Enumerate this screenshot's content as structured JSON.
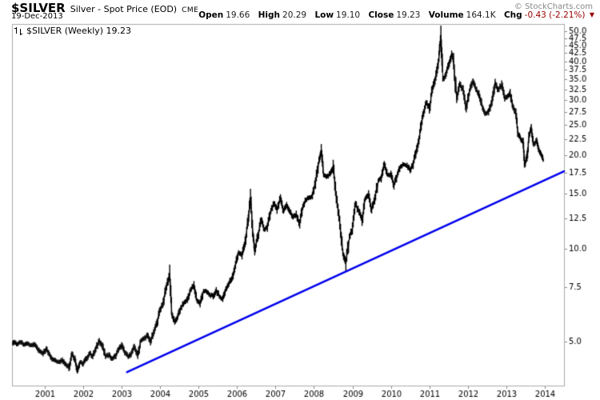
{
  "header": {
    "symbol": "$SILVER",
    "description": "Silver - Spot Price (EOD)",
    "exchange": "CME",
    "date": "19-Dec-2013",
    "copyright": "© StockCharts.com",
    "quote": {
      "items": [
        {
          "label": "Open",
          "value": "19.66"
        },
        {
          "label": "High",
          "value": "20.29"
        },
        {
          "label": "Low",
          "value": "19.10"
        },
        {
          "label": "Close",
          "value": "19.23"
        },
        {
          "label": "Volume",
          "value": "164.1K"
        },
        {
          "label": "Chg",
          "value": "-0.43 (-2.21%)"
        }
      ]
    }
  },
  "icons": {
    "change_down_icon": "▼"
  },
  "legend": {
    "label": "$SILVER (Weekly) 19.23"
  },
  "colors": {
    "price": "#000000",
    "trendline": "#0000ee",
    "negative": "#990000",
    "frame": "#aaaaaa",
    "tick": "#888888",
    "copyright": "#888888"
  },
  "chart_data": {
    "type": "line",
    "title": "$SILVER (Weekly) 19.23",
    "xlabel": "",
    "ylabel": "",
    "y_scale": "log",
    "grid": false,
    "legend_position": "top-left",
    "xlim": [
      2000.15,
      2014.5
    ],
    "ylim": [
      3.62,
      52.7
    ],
    "x_ticks": [
      2001,
      2002,
      2003,
      2004,
      2005,
      2006,
      2007,
      2008,
      2009,
      2010,
      2011,
      2012,
      2013,
      2014
    ],
    "y_ticks": [
      5.0,
      7.5,
      10.0,
      12.5,
      15.0,
      17.5,
      20.0,
      22.5,
      25.0,
      27.5,
      30.0,
      32.5,
      35.0,
      37.5,
      40.0,
      42.5,
      45.0,
      47.5,
      50.0
    ],
    "trendline": {
      "x1": 2003.14,
      "y1": 4.0,
      "x2": 2014.5,
      "y2": 17.7,
      "color": "#0000ee"
    },
    "series": [
      {
        "name": "$SILVER weekly price",
        "points": [
          [
            2000.17,
            4.95
          ],
          [
            2000.21,
            5.0
          ],
          [
            2000.29,
            4.92
          ],
          [
            2000.38,
            4.98
          ],
          [
            2000.46,
            4.9
          ],
          [
            2000.54,
            4.95
          ],
          [
            2000.63,
            4.88
          ],
          [
            2000.71,
            4.92
          ],
          [
            2000.79,
            4.82
          ],
          [
            2000.88,
            4.65
          ],
          [
            2000.96,
            4.58
          ],
          [
            2001.04,
            4.75
          ],
          [
            2001.13,
            4.55
          ],
          [
            2001.21,
            4.4
          ],
          [
            2001.29,
            4.35
          ],
          [
            2001.38,
            4.32
          ],
          [
            2001.46,
            4.38
          ],
          [
            2001.54,
            4.25
          ],
          [
            2001.63,
            4.15
          ],
          [
            2001.71,
            4.58
          ],
          [
            2001.79,
            4.4
          ],
          [
            2001.85,
            4.05
          ],
          [
            2001.92,
            4.3
          ],
          [
            2002.0,
            4.25
          ],
          [
            2002.08,
            4.42
          ],
          [
            2002.17,
            4.6
          ],
          [
            2002.25,
            4.5
          ],
          [
            2002.33,
            4.75
          ],
          [
            2002.42,
            5.05
          ],
          [
            2002.5,
            4.85
          ],
          [
            2002.58,
            4.48
          ],
          [
            2002.67,
            4.55
          ],
          [
            2002.75,
            4.42
          ],
          [
            2002.83,
            4.5
          ],
          [
            2002.92,
            4.72
          ],
          [
            2003.0,
            4.88
          ],
          [
            2003.08,
            4.62
          ],
          [
            2003.17,
            4.48
          ],
          [
            2003.25,
            4.58
          ],
          [
            2003.33,
            4.82
          ],
          [
            2003.42,
            4.55
          ],
          [
            2003.5,
            5.05
          ],
          [
            2003.58,
            5.12
          ],
          [
            2003.67,
            5.25
          ],
          [
            2003.75,
            5.0
          ],
          [
            2003.83,
            5.35
          ],
          [
            2003.92,
            5.75
          ],
          [
            2004.0,
            6.35
          ],
          [
            2004.08,
            6.7
          ],
          [
            2004.17,
            7.55
          ],
          [
            2004.25,
            8.3
          ],
          [
            2004.31,
            6.1
          ],
          [
            2004.38,
            5.8
          ],
          [
            2004.46,
            6.05
          ],
          [
            2004.54,
            6.45
          ],
          [
            2004.63,
            6.7
          ],
          [
            2004.71,
            6.85
          ],
          [
            2004.79,
            7.35
          ],
          [
            2004.88,
            7.6
          ],
          [
            2004.96,
            6.8
          ],
          [
            2005.04,
            6.65
          ],
          [
            2005.13,
            7.3
          ],
          [
            2005.21,
            7.25
          ],
          [
            2005.29,
            7.1
          ],
          [
            2005.38,
            7.0
          ],
          [
            2005.46,
            7.35
          ],
          [
            2005.54,
            7.0
          ],
          [
            2005.63,
            6.9
          ],
          [
            2005.71,
            7.4
          ],
          [
            2005.79,
            7.7
          ],
          [
            2005.88,
            8.1
          ],
          [
            2005.96,
            8.85
          ],
          [
            2006.04,
            9.7
          ],
          [
            2006.13,
            9.5
          ],
          [
            2006.21,
            10.5
          ],
          [
            2006.29,
            12.3
          ],
          [
            2006.35,
            14.6
          ],
          [
            2006.42,
            10.9
          ],
          [
            2006.46,
            9.8
          ],
          [
            2006.54,
            10.9
          ],
          [
            2006.63,
            12.3
          ],
          [
            2006.71,
            11.5
          ],
          [
            2006.79,
            11.7
          ],
          [
            2006.88,
            13.2
          ],
          [
            2006.96,
            13.9
          ],
          [
            2007.04,
            13.3
          ],
          [
            2007.13,
            14.5
          ],
          [
            2007.21,
            13.2
          ],
          [
            2007.29,
            13.8
          ],
          [
            2007.38,
            13.1
          ],
          [
            2007.46,
            12.6
          ],
          [
            2007.54,
            12.9
          ],
          [
            2007.63,
            12.0
          ],
          [
            2007.71,
            13.6
          ],
          [
            2007.79,
            14.3
          ],
          [
            2007.88,
            14.6
          ],
          [
            2007.96,
            14.8
          ],
          [
            2008.04,
            16.2
          ],
          [
            2008.13,
            19.2
          ],
          [
            2008.19,
            20.7
          ],
          [
            2008.25,
            17.2
          ],
          [
            2008.33,
            17.0
          ],
          [
            2008.42,
            17.4
          ],
          [
            2008.5,
            18.3
          ],
          [
            2008.58,
            14.6
          ],
          [
            2008.67,
            12.1
          ],
          [
            2008.75,
            9.7
          ],
          [
            2008.83,
            8.9
          ],
          [
            2008.92,
            10.9
          ],
          [
            2009.0,
            11.6
          ],
          [
            2009.08,
            13.9
          ],
          [
            2009.17,
            13.1
          ],
          [
            2009.25,
            12.3
          ],
          [
            2009.33,
            14.4
          ],
          [
            2009.42,
            14.9
          ],
          [
            2009.5,
            13.3
          ],
          [
            2009.58,
            14.4
          ],
          [
            2009.67,
            16.5
          ],
          [
            2009.75,
            16.8
          ],
          [
            2009.83,
            18.6
          ],
          [
            2009.92,
            17.2
          ],
          [
            2010.0,
            17.3
          ],
          [
            2010.08,
            15.9
          ],
          [
            2010.17,
            17.3
          ],
          [
            2010.25,
            18.3
          ],
          [
            2010.33,
            18.6
          ],
          [
            2010.42,
            18.5
          ],
          [
            2010.5,
            17.8
          ],
          [
            2010.58,
            18.6
          ],
          [
            2010.67,
            20.8
          ],
          [
            2010.75,
            23.3
          ],
          [
            2010.83,
            26.8
          ],
          [
            2010.92,
            29.4
          ],
          [
            2011.0,
            28.2
          ],
          [
            2011.08,
            32.5
          ],
          [
            2011.17,
            36.0
          ],
          [
            2011.25,
            41.5
          ],
          [
            2011.3,
            48.6
          ],
          [
            2011.35,
            35.0
          ],
          [
            2011.42,
            36.0
          ],
          [
            2011.5,
            38.8
          ],
          [
            2011.58,
            42.3
          ],
          [
            2011.63,
            40.0
          ],
          [
            2011.71,
            30.3
          ],
          [
            2011.79,
            33.8
          ],
          [
            2011.88,
            32.3
          ],
          [
            2011.96,
            28.3
          ],
          [
            2012.04,
            31.8
          ],
          [
            2012.13,
            34.4
          ],
          [
            2012.21,
            32.5
          ],
          [
            2012.29,
            31.3
          ],
          [
            2012.38,
            28.4
          ],
          [
            2012.46,
            27.1
          ],
          [
            2012.54,
            27.5
          ],
          [
            2012.63,
            29.8
          ],
          [
            2012.71,
            34.3
          ],
          [
            2012.79,
            32.4
          ],
          [
            2012.88,
            33.6
          ],
          [
            2012.96,
            30.2
          ],
          [
            2013.04,
            31.0
          ],
          [
            2013.1,
            31.6
          ],
          [
            2013.17,
            28.6
          ],
          [
            2013.25,
            27.1
          ],
          [
            2013.31,
            23.3
          ],
          [
            2013.38,
            22.4
          ],
          [
            2013.44,
            21.8
          ],
          [
            2013.48,
            18.6
          ],
          [
            2013.54,
            19.8
          ],
          [
            2013.6,
            23.2
          ],
          [
            2013.65,
            24.3
          ],
          [
            2013.71,
            21.6
          ],
          [
            2013.79,
            22.2
          ],
          [
            2013.85,
            20.7
          ],
          [
            2013.92,
            19.9
          ],
          [
            2013.96,
            19.23
          ]
        ]
      }
    ]
  }
}
